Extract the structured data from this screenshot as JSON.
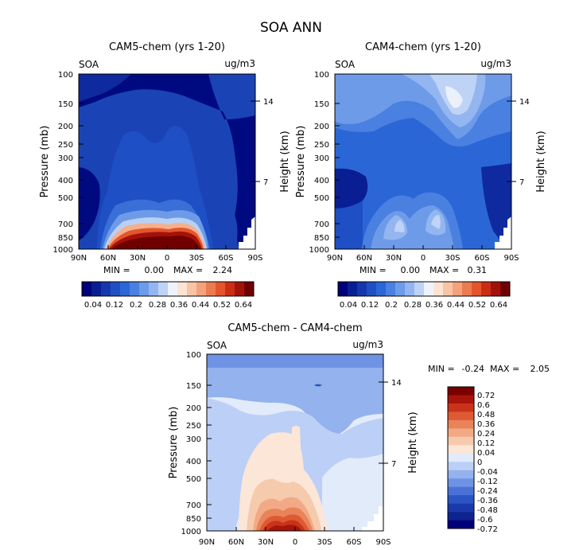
{
  "figure_title": "SOA ANN",
  "colors": {
    "positive_scale": [
      "#00007a",
      "#0a1e94",
      "#1537ad",
      "#1e4fc4",
      "#2b66d6",
      "#4a80e0",
      "#6d9be8",
      "#93b6f0",
      "#bfd3f6",
      "#eef3fb",
      "#fde3d2",
      "#f8c4a8",
      "#f3a27c",
      "#ec7a52",
      "#e4552d",
      "#cb2d14",
      "#a3120a",
      "#700000"
    ],
    "diff_scale": [
      "#00007a",
      "#0d2490",
      "#1a3aab",
      "#2a55c2",
      "#4a72d6",
      "#6e93e4",
      "#93b2ee",
      "#bccff6",
      "#e2ebfa",
      "#fbe6d8",
      "#f6caad",
      "#f1aa85",
      "#e9835a",
      "#df5a34",
      "#c8331a",
      "#a8140b",
      "#7a0000"
    ],
    "highlight": "#b11c0c"
  },
  "chart_data": [
    {
      "type": "heatmap",
      "title": "CAM5-chem (yrs 1-20)",
      "field_label": "SOA",
      "units": "ug/m3",
      "xlabel": "",
      "ylabel": "Pressure (mb)",
      "y2label": "Height (km)",
      "x_ticks": [
        "90N",
        "60N",
        "30N",
        "0",
        "30S",
        "60S",
        "90S"
      ],
      "y_ticks": [
        100,
        150,
        200,
        250,
        300,
        400,
        500,
        700,
        850,
        1000
      ],
      "y2_ticks": [
        14,
        7
      ],
      "min_label": "MIN =",
      "min": "0.00",
      "max_label": "MAX =",
      "max": "2.24",
      "colorbar_labels": [
        "0.04",
        "0.12",
        "0.2",
        "0.28",
        "0.36",
        "0.44",
        "0.52",
        "0.64"
      ],
      "colorbar_levels": 16
    },
    {
      "type": "heatmap",
      "title": "CAM4-chem (yrs 1-20)",
      "field_label": "SOA",
      "units": "ug/m3",
      "xlabel": "",
      "ylabel": "Pressure (mb)",
      "y2label": "Height (km)",
      "x_ticks": [
        "90N",
        "60N",
        "30N",
        "0",
        "30S",
        "60S",
        "90S"
      ],
      "y_ticks": [
        100,
        150,
        200,
        250,
        300,
        400,
        500,
        700,
        850,
        1000
      ],
      "y2_ticks": [
        14,
        7
      ],
      "min_label": "MIN =",
      "min": "0.00",
      "max_label": "MAX =",
      "max": "0.31",
      "colorbar_labels": [
        "0.04",
        "0.12",
        "0.2",
        "0.28",
        "0.36",
        "0.44",
        "0.52",
        "0.64"
      ],
      "colorbar_levels": 16
    },
    {
      "type": "heatmap",
      "title": "CAM5-chem - CAM4-chem",
      "field_label": "SOA",
      "units": "ug/m3",
      "xlabel": "",
      "ylabel": "Pressure (mb)",
      "y2label": "Height (km)",
      "x_ticks": [
        "90N",
        "60N",
        "30N",
        "0",
        "30S",
        "60S",
        "90S"
      ],
      "y_ticks": [
        100,
        150,
        200,
        250,
        300,
        400,
        500,
        700,
        850,
        1000
      ],
      "y2_ticks": [
        14,
        7
      ],
      "min_label": "MIN =",
      "min": "-0.24",
      "max_label": "MAX =",
      "max": "2.05",
      "colorbar_labels": [
        "0.72",
        "0.6",
        "0.48",
        "0.36",
        "0.24",
        "0.12",
        "0.04",
        "0",
        "-0.04",
        "-0.12",
        "-0.24",
        "-0.36",
        "-0.48",
        "-0.6",
        "-0.72"
      ]
    }
  ]
}
